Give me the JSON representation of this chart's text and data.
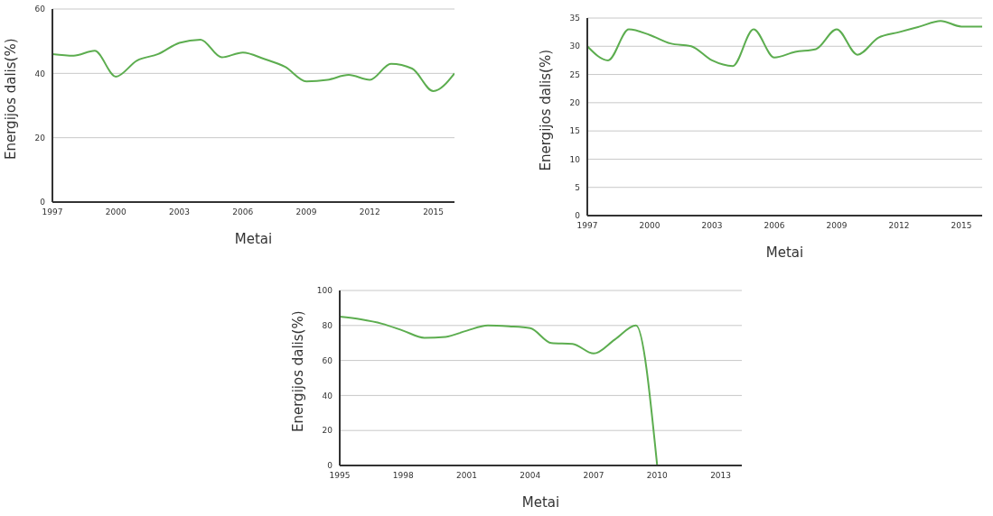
{
  "chart_data": [
    {
      "type": "line",
      "xlabel": "Metai",
      "ylabel": "Energijos dalis(%)",
      "x": [
        1997,
        1998,
        1999,
        2000,
        2001,
        2002,
        2003,
        2004,
        2005,
        2006,
        2007,
        2008,
        2009,
        2010,
        2011,
        2012,
        2013,
        2014,
        2015,
        2016
      ],
      "series": [
        {
          "color": "#5cad4f",
          "values": [
            46,
            45.5,
            47,
            39,
            44,
            46,
            49.5,
            50.5,
            45,
            46.5,
            44.5,
            42,
            37.5,
            38,
            39.5,
            38,
            43,
            41.5,
            34.5,
            40
          ]
        }
      ],
      "xlim": [
        1997,
        2016
      ],
      "xticks": [
        1997,
        2000,
        2003,
        2006,
        2009,
        2012,
        2015
      ],
      "ylim": [
        0,
        60
      ],
      "yticks": [
        0,
        20,
        40,
        60
      ],
      "grid": "y",
      "legend": false,
      "marker": "none",
      "line_style": "solid"
    },
    {
      "type": "line",
      "xlabel": "Metai",
      "ylabel": "Energijos dalis(%)",
      "x": [
        1997,
        1998,
        1999,
        2000,
        2001,
        2002,
        2003,
        2004,
        2005,
        2006,
        2007,
        2008,
        2009,
        2010,
        2011,
        2012,
        2013,
        2014,
        2015,
        2016
      ],
      "series": [
        {
          "color": "#5cad4f",
          "values": [
            30,
            27.5,
            33,
            32,
            30.5,
            30,
            27.5,
            26.5,
            33,
            28,
            29,
            29.5,
            33,
            28.5,
            31.5,
            32.5,
            33.5,
            34.5,
            33.5,
            33.5
          ]
        }
      ],
      "xlim": [
        1997,
        2016
      ],
      "xticks": [
        1997,
        2000,
        2003,
        2006,
        2009,
        2012,
        2015
      ],
      "ylim": [
        0,
        35
      ],
      "yticks": [
        0,
        5,
        10,
        15,
        20,
        25,
        30,
        35
      ],
      "grid": "y",
      "legend": false,
      "marker": "none",
      "line_style": "solid"
    },
    {
      "type": "line",
      "xlabel": "Metai",
      "ylabel": "Energijos dalis(%)",
      "x": [
        1995,
        1996,
        1997,
        1998,
        1999,
        2000,
        2001,
        2002,
        2003,
        2004,
        2005,
        2006,
        2007,
        2008,
        2009,
        2010
      ],
      "series": [
        {
          "color": "#5cad4f",
          "values": [
            85,
            83.5,
            81,
            77,
            73,
            73.5,
            77,
            80,
            79.5,
            78.5,
            70,
            69.5,
            64,
            72,
            80,
            0
          ]
        }
      ],
      "xlim": [
        1995,
        2014
      ],
      "xticks": [
        1995,
        1998,
        2001,
        2004,
        2007,
        2010,
        2013
      ],
      "ylim": [
        0,
        100
      ],
      "yticks": [
        0,
        20,
        40,
        60,
        80,
        100
      ],
      "grid": "y",
      "legend": false,
      "marker": "none",
      "line_style": "solid"
    }
  ]
}
